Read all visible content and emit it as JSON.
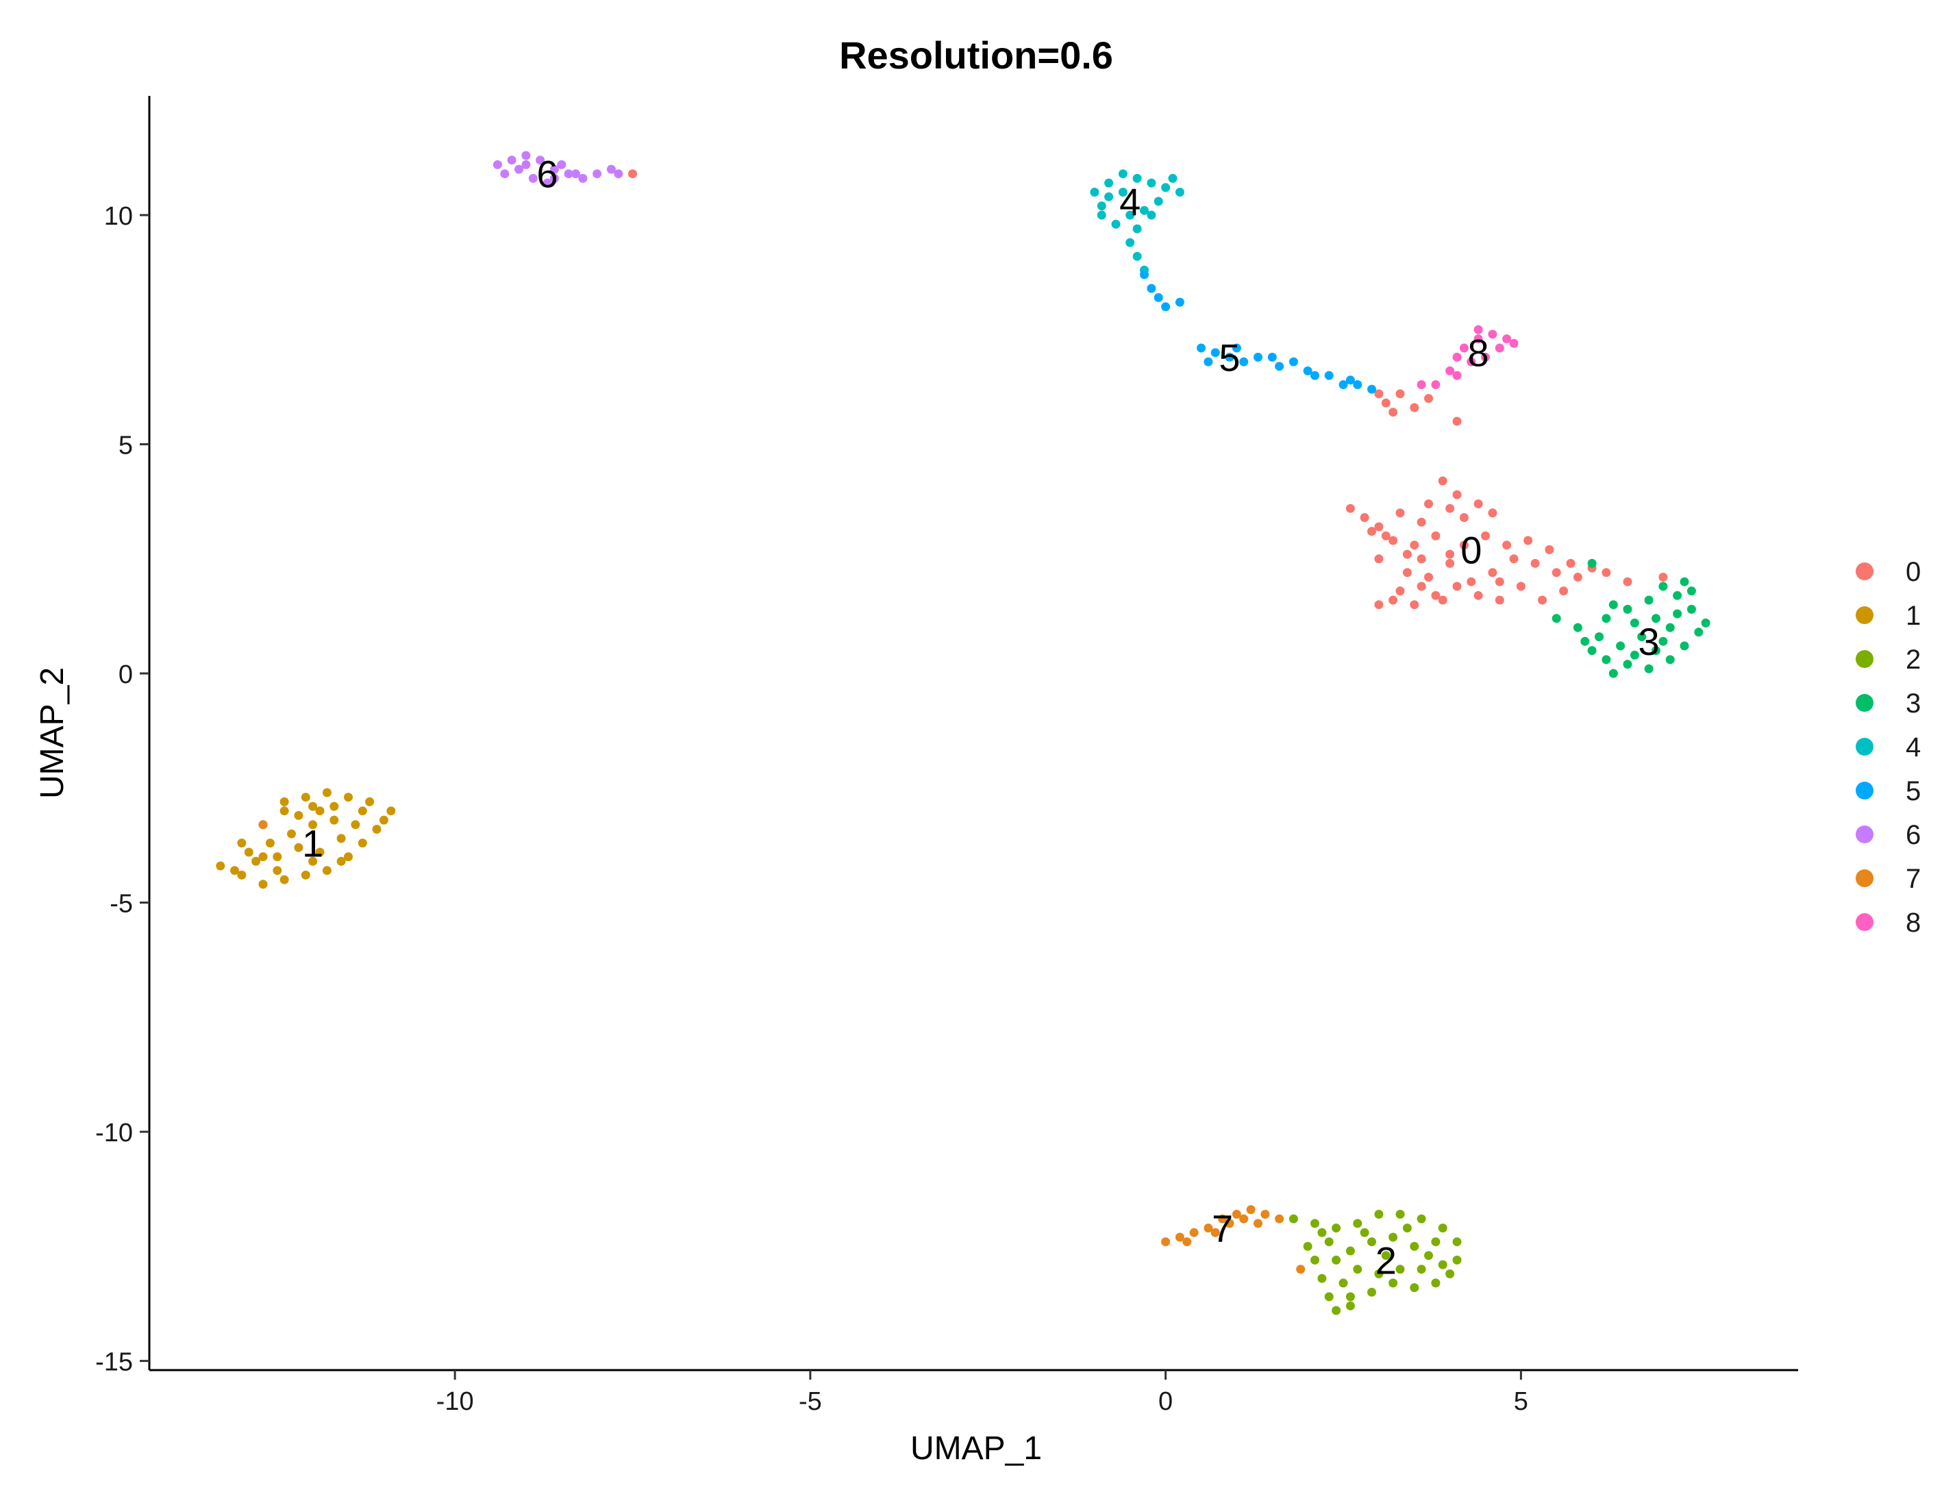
{
  "chart_data": {
    "type": "scatter",
    "title": "Resolution=0.6",
    "xlabel": "UMAP_1",
    "ylabel": "UMAP_2",
    "xlim": [
      -14.3,
      8.9
    ],
    "ylim": [
      -15.2,
      12.6
    ],
    "xticks": [
      -10,
      -5,
      0,
      5
    ],
    "yticks": [
      -15,
      -10,
      -5,
      0,
      5,
      10
    ],
    "legend_position": "right",
    "grid": false,
    "series": [
      {
        "name": "0",
        "color": "#F8766D",
        "center": [
          4.3,
          2.7
        ],
        "label_pos": [
          4.3,
          2.7
        ],
        "points": [
          [
            2.8,
            3.4
          ],
          [
            2.6,
            3.6
          ],
          [
            3.0,
            3.2
          ],
          [
            3.3,
            3.5
          ],
          [
            3.6,
            3.3
          ],
          [
            3.9,
            4.2
          ],
          [
            4.1,
            3.9
          ],
          [
            4.4,
            3.7
          ],
          [
            4.2,
            3.4
          ],
          [
            3.8,
            3.0
          ],
          [
            3.5,
            2.8
          ],
          [
            3.2,
            2.9
          ],
          [
            3.0,
            2.5
          ],
          [
            3.4,
            2.2
          ],
          [
            3.7,
            2.1
          ],
          [
            4.0,
            2.4
          ],
          [
            4.3,
            2.0
          ],
          [
            4.6,
            2.2
          ],
          [
            4.9,
            2.5
          ],
          [
            5.2,
            2.4
          ],
          [
            5.5,
            2.2
          ],
          [
            5.8,
            2.1
          ],
          [
            6.0,
            2.3
          ],
          [
            5.6,
            1.8
          ],
          [
            5.3,
            1.6
          ],
          [
            5.0,
            1.9
          ],
          [
            4.7,
            1.6
          ],
          [
            4.4,
            1.7
          ],
          [
            4.1,
            1.9
          ],
          [
            3.8,
            1.7
          ],
          [
            3.5,
            1.5
          ],
          [
            3.2,
            1.6
          ],
          [
            3.0,
            1.5
          ],
          [
            3.3,
            1.8
          ],
          [
            3.6,
            1.9
          ],
          [
            3.9,
            1.6
          ],
          [
            4.5,
            3.0
          ],
          [
            4.8,
            2.8
          ],
          [
            5.1,
            2.9
          ],
          [
            3.4,
            2.6
          ],
          [
            3.1,
            3.0
          ],
          [
            2.9,
            3.1
          ],
          [
            3.7,
            3.7
          ],
          [
            4.0,
            3.6
          ],
          [
            4.6,
            3.5
          ],
          [
            4.2,
            2.8
          ],
          [
            4.0,
            2.6
          ],
          [
            3.6,
            2.5
          ],
          [
            4.7,
            2.0
          ],
          [
            5.4,
            2.7
          ],
          [
            5.7,
            2.4
          ],
          [
            6.2,
            2.2
          ],
          [
            6.5,
            2.0
          ],
          [
            7.0,
            2.1
          ],
          [
            3.1,
            5.9
          ],
          [
            3.3,
            6.1
          ],
          [
            3.5,
            5.8
          ],
          [
            3.7,
            6.0
          ],
          [
            3.2,
            5.7
          ],
          [
            4.1,
            5.5
          ],
          [
            3.0,
            6.1
          ],
          [
            -7.5,
            10.9
          ]
        ]
      },
      {
        "name": "1",
        "color": "#CD9600",
        "center": [
          -12.1,
          -3.6
        ],
        "label_pos": [
          -12.0,
          -3.7
        ],
        "points": [
          [
            -13.3,
            -4.2
          ],
          [
            -13.0,
            -4.4
          ],
          [
            -12.7,
            -4.6
          ],
          [
            -12.4,
            -4.5
          ],
          [
            -12.1,
            -4.4
          ],
          [
            -11.8,
            -4.3
          ],
          [
            -11.5,
            -4.0
          ],
          [
            -11.3,
            -3.7
          ],
          [
            -11.1,
            -3.4
          ],
          [
            -10.9,
            -3.0
          ],
          [
            -11.2,
            -2.8
          ],
          [
            -11.5,
            -2.7
          ],
          [
            -11.8,
            -2.6
          ],
          [
            -12.1,
            -2.7
          ],
          [
            -12.4,
            -3.0
          ],
          [
            -12.7,
            -3.3
          ],
          [
            -13.0,
            -3.7
          ],
          [
            -12.8,
            -4.1
          ],
          [
            -12.5,
            -4.0
          ],
          [
            -12.2,
            -3.8
          ],
          [
            -11.9,
            -3.9
          ],
          [
            -11.6,
            -3.6
          ],
          [
            -11.7,
            -3.2
          ],
          [
            -12.0,
            -3.3
          ],
          [
            -12.3,
            -3.5
          ],
          [
            -12.6,
            -3.7
          ],
          [
            -12.9,
            -3.9
          ],
          [
            -11.4,
            -3.3
          ],
          [
            -12.2,
            -3.1
          ],
          [
            -11.9,
            -3.0
          ],
          [
            -12.5,
            -4.3
          ],
          [
            -11.6,
            -4.1
          ],
          [
            -12.0,
            -4.1
          ],
          [
            -11.3,
            -3.0
          ],
          [
            -12.7,
            -4.0
          ],
          [
            -11.0,
            -3.2
          ],
          [
            -12.4,
            -2.8
          ],
          [
            -11.7,
            -2.9
          ],
          [
            -13.1,
            -4.3
          ],
          [
            -12.0,
            -2.9
          ]
        ]
      },
      {
        "name": "2",
        "color": "#7CAE00",
        "center": [
          3.1,
          -12.8
        ],
        "label_pos": [
          3.1,
          -12.8
        ],
        "points": [
          [
            1.8,
            -11.9
          ],
          [
            2.1,
            -12.0
          ],
          [
            2.4,
            -12.1
          ],
          [
            2.7,
            -12.0
          ],
          [
            3.0,
            -11.8
          ],
          [
            3.3,
            -11.8
          ],
          [
            3.6,
            -11.9
          ],
          [
            3.9,
            -12.1
          ],
          [
            4.1,
            -12.4
          ],
          [
            4.1,
            -12.8
          ],
          [
            4.0,
            -13.1
          ],
          [
            3.8,
            -13.3
          ],
          [
            3.5,
            -13.4
          ],
          [
            3.2,
            -13.3
          ],
          [
            2.9,
            -13.5
          ],
          [
            2.6,
            -13.6
          ],
          [
            2.4,
            -13.9
          ],
          [
            2.3,
            -13.6
          ],
          [
            2.2,
            -13.2
          ],
          [
            2.1,
            -12.8
          ],
          [
            2.0,
            -12.5
          ],
          [
            2.3,
            -12.4
          ],
          [
            2.6,
            -12.6
          ],
          [
            2.9,
            -12.4
          ],
          [
            3.2,
            -12.3
          ],
          [
            3.5,
            -12.5
          ],
          [
            3.7,
            -12.7
          ],
          [
            3.6,
            -13.0
          ],
          [
            3.3,
            -13.0
          ],
          [
            3.0,
            -13.1
          ],
          [
            2.7,
            -13.0
          ],
          [
            2.5,
            -13.3
          ],
          [
            2.8,
            -12.2
          ],
          [
            3.4,
            -12.1
          ],
          [
            3.8,
            -12.4
          ],
          [
            2.2,
            -12.2
          ],
          [
            2.6,
            -13.8
          ],
          [
            3.9,
            -12.9
          ],
          [
            2.4,
            -12.8
          ],
          [
            3.1,
            -12.7
          ]
        ]
      },
      {
        "name": "3",
        "color": "#00BE67",
        "center": [
          6.8,
          0.7
        ],
        "label_pos": [
          6.8,
          0.7
        ],
        "points": [
          [
            5.5,
            1.2
          ],
          [
            5.8,
            1.0
          ],
          [
            6.1,
            0.8
          ],
          [
            6.0,
            0.5
          ],
          [
            6.2,
            0.3
          ],
          [
            6.5,
            0.2
          ],
          [
            6.8,
            0.1
          ],
          [
            7.1,
            0.3
          ],
          [
            7.3,
            0.6
          ],
          [
            7.5,
            0.9
          ],
          [
            7.6,
            1.1
          ],
          [
            7.4,
            1.4
          ],
          [
            7.2,
            1.7
          ],
          [
            7.0,
            1.9
          ],
          [
            6.8,
            1.6
          ],
          [
            6.5,
            1.4
          ],
          [
            6.3,
            1.5
          ],
          [
            6.6,
            1.1
          ],
          [
            6.9,
            1.2
          ],
          [
            7.1,
            1.0
          ],
          [
            6.7,
            0.8
          ],
          [
            6.4,
            0.6
          ],
          [
            6.9,
            0.5
          ],
          [
            7.2,
            1.3
          ],
          [
            6.2,
            1.2
          ],
          [
            5.9,
            0.7
          ],
          [
            6.6,
            0.4
          ],
          [
            7.4,
            1.8
          ],
          [
            6.0,
            2.4
          ],
          [
            7.3,
            2.0
          ],
          [
            6.3,
            0.0
          ],
          [
            7.0,
            0.7
          ]
        ]
      },
      {
        "name": "4",
        "color": "#00BFC4",
        "center": [
          -0.6,
          10.3
        ],
        "label_pos": [
          -0.5,
          10.3
        ],
        "points": [
          [
            -1.0,
            10.5
          ],
          [
            -0.9,
            10.2
          ],
          [
            -0.8,
            10.7
          ],
          [
            -0.6,
            10.9
          ],
          [
            -0.4,
            10.8
          ],
          [
            -0.2,
            10.7
          ],
          [
            0.1,
            10.8
          ],
          [
            0.2,
            10.5
          ],
          [
            -0.1,
            10.3
          ],
          [
            -0.3,
            10.1
          ],
          [
            -0.5,
            10.0
          ],
          [
            -0.7,
            9.8
          ],
          [
            -0.9,
            10.0
          ],
          [
            -0.6,
            10.5
          ],
          [
            -0.2,
            10.0
          ],
          [
            -0.8,
            10.4
          ],
          [
            -0.4,
            9.7
          ],
          [
            -0.5,
            9.4
          ],
          [
            -0.4,
            9.1
          ],
          [
            -0.3,
            8.8
          ],
          [
            0.0,
            10.6
          ]
        ]
      },
      {
        "name": "5",
        "color": "#00A9FF",
        "center": [
          0.9,
          6.9
        ],
        "label_pos": [
          0.9,
          6.9
        ],
        "points": [
          [
            -0.3,
            8.7
          ],
          [
            -0.2,
            8.4
          ],
          [
            -0.1,
            8.2
          ],
          [
            0.0,
            8.0
          ],
          [
            0.2,
            8.1
          ],
          [
            0.5,
            7.1
          ],
          [
            0.7,
            7.0
          ],
          [
            0.9,
            6.9
          ],
          [
            1.1,
            6.8
          ],
          [
            1.3,
            6.9
          ],
          [
            1.6,
            6.7
          ],
          [
            1.8,
            6.8
          ],
          [
            2.0,
            6.6
          ],
          [
            2.3,
            6.5
          ],
          [
            2.5,
            6.3
          ],
          [
            2.7,
            6.3
          ],
          [
            2.9,
            6.2
          ],
          [
            1.5,
            6.9
          ],
          [
            0.6,
            6.8
          ],
          [
            1.0,
            7.1
          ],
          [
            2.1,
            6.5
          ],
          [
            2.6,
            6.4
          ]
        ]
      },
      {
        "name": "6",
        "color": "#C77CFF",
        "center": [
          -8.8,
          11.0
        ],
        "label_pos": [
          -8.7,
          10.9
        ],
        "points": [
          [
            -9.4,
            11.1
          ],
          [
            -9.2,
            11.2
          ],
          [
            -9.0,
            11.3
          ],
          [
            -8.8,
            11.2
          ],
          [
            -8.6,
            11.0
          ],
          [
            -8.4,
            10.9
          ],
          [
            -8.2,
            10.8
          ],
          [
            -8.0,
            10.9
          ],
          [
            -7.8,
            11.0
          ],
          [
            -7.7,
            10.9
          ],
          [
            -9.3,
            10.9
          ],
          [
            -9.1,
            11.0
          ],
          [
            -8.9,
            10.8
          ],
          [
            -8.7,
            10.7
          ],
          [
            -8.5,
            11.1
          ],
          [
            -8.3,
            10.9
          ],
          [
            -8.6,
            10.8
          ],
          [
            -9.0,
            11.1
          ]
        ]
      },
      {
        "name": "7",
        "color": "#E7861B",
        "center": [
          0.8,
          -12.1
        ],
        "label_pos": [
          0.8,
          -12.1
        ],
        "points": [
          [
            0.0,
            -12.4
          ],
          [
            0.2,
            -12.3
          ],
          [
            0.4,
            -12.2
          ],
          [
            0.6,
            -12.1
          ],
          [
            0.8,
            -11.9
          ],
          [
            1.0,
            -11.8
          ],
          [
            1.2,
            -11.7
          ],
          [
            1.4,
            -11.8
          ],
          [
            1.6,
            -11.9
          ],
          [
            0.3,
            -12.4
          ],
          [
            0.7,
            -12.2
          ],
          [
            1.1,
            -11.9
          ],
          [
            1.3,
            -12.0
          ],
          [
            0.9,
            -12.0
          ],
          [
            -12.7,
            -3.3
          ],
          [
            1.9,
            -13.0
          ]
        ]
      },
      {
        "name": "8",
        "color": "#FF61C3",
        "center": [
          4.5,
          7.2
        ],
        "label_pos": [
          4.4,
          7.0
        ],
        "points": [
          [
            3.8,
            6.3
          ],
          [
            4.0,
            6.6
          ],
          [
            4.1,
            6.9
          ],
          [
            4.2,
            7.1
          ],
          [
            4.4,
            7.3
          ],
          [
            4.6,
            7.4
          ],
          [
            4.8,
            7.3
          ],
          [
            4.9,
            7.2
          ],
          [
            4.3,
            6.8
          ],
          [
            4.5,
            6.9
          ],
          [
            4.7,
            7.1
          ],
          [
            3.6,
            6.3
          ],
          [
            4.4,
            7.5
          ],
          [
            4.1,
            6.5
          ]
        ]
      }
    ]
  }
}
